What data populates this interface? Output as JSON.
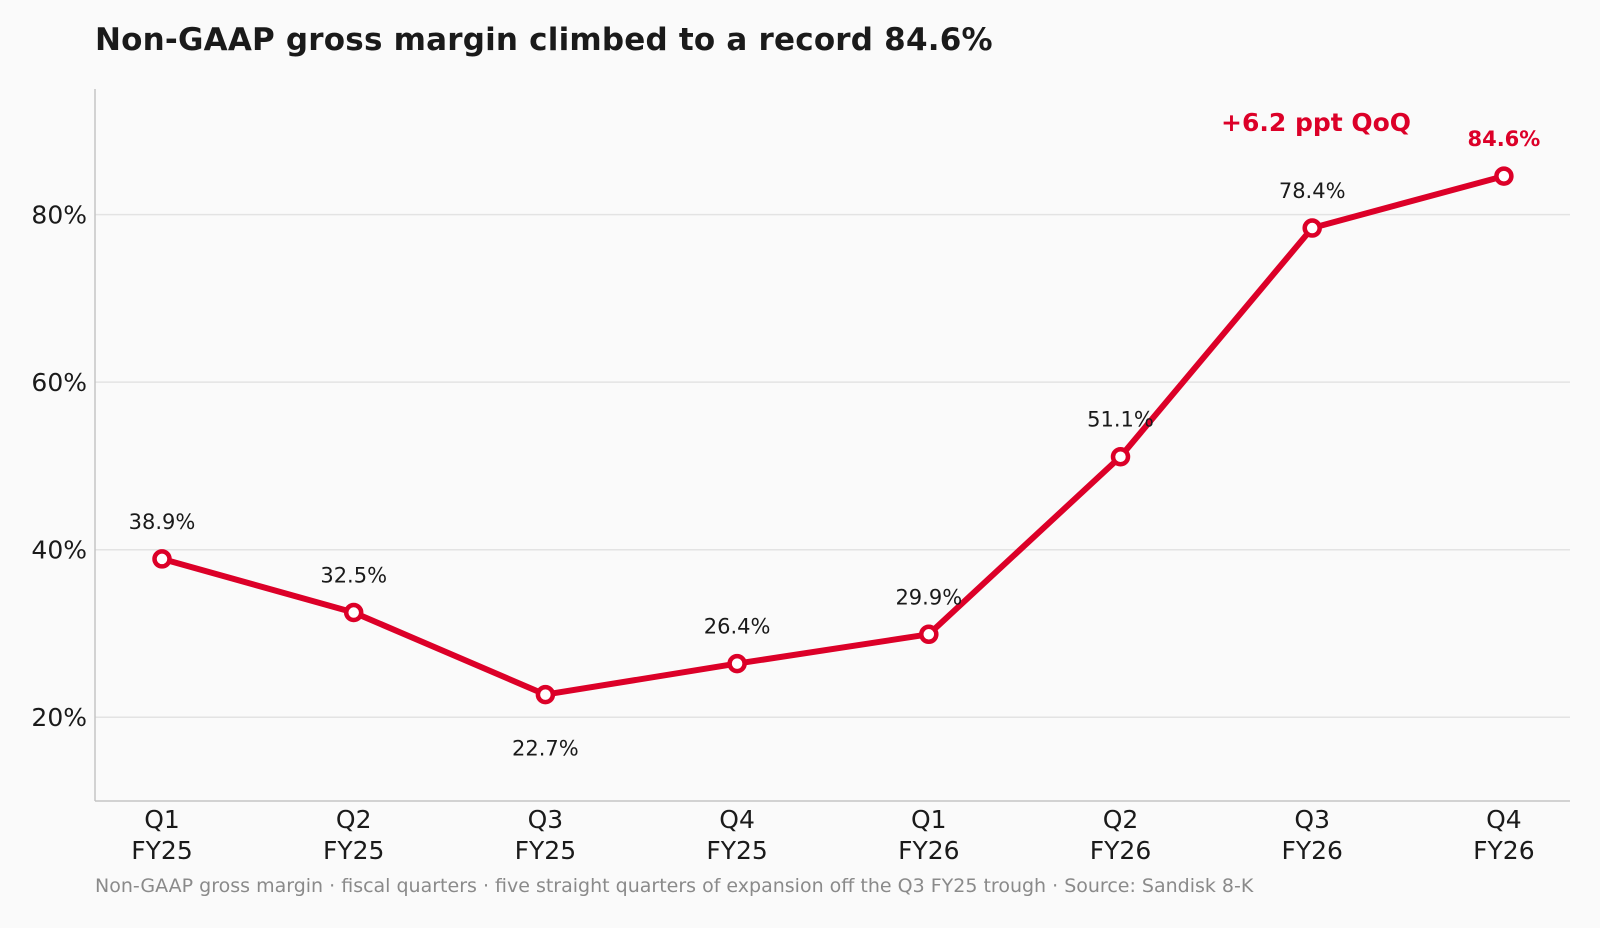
{
  "title": "Non-GAAP gross margin climbed to a record 84.6%",
  "caption": "Non-GAAP gross margin · fiscal quarters · five straight quarters of expansion off the Q3 FY25 trough · Source: Sandisk 8-K",
  "chart_data": {
    "type": "line",
    "categories": [
      [
        "Q1",
        "FY25"
      ],
      [
        "Q2",
        "FY25"
      ],
      [
        "Q3",
        "FY25"
      ],
      [
        "Q4",
        "FY25"
      ],
      [
        "Q1",
        "FY26"
      ],
      [
        "Q2",
        "FY26"
      ],
      [
        "Q3",
        "FY26"
      ],
      [
        "Q4",
        "FY26"
      ]
    ],
    "series": [
      {
        "values": [
          38.9,
          32.5,
          22.7,
          26.4,
          29.9,
          51.1,
          78.4,
          84.6
        ]
      }
    ],
    "data_labels": [
      "38.9%",
      "32.5%",
      "22.7%",
      "26.4%",
      "29.9%",
      "51.1%",
      "78.4%",
      "84.6%"
    ],
    "highlight_index": 7,
    "annotation": "+6.2 ppt QoQ",
    "ylim": [
      10,
      95
    ],
    "yticks": [
      20,
      40,
      60,
      80
    ],
    "ytick_labels": [
      "20%",
      "40%",
      "60%",
      "80%"
    ],
    "grid": "horizontal",
    "line_color": "#dc0028",
    "marker_fill": "#ffffff",
    "grid_color": "#e3e3e3",
    "axis_color": "#c4c4c4",
    "text_color": "#1a1a1a"
  }
}
